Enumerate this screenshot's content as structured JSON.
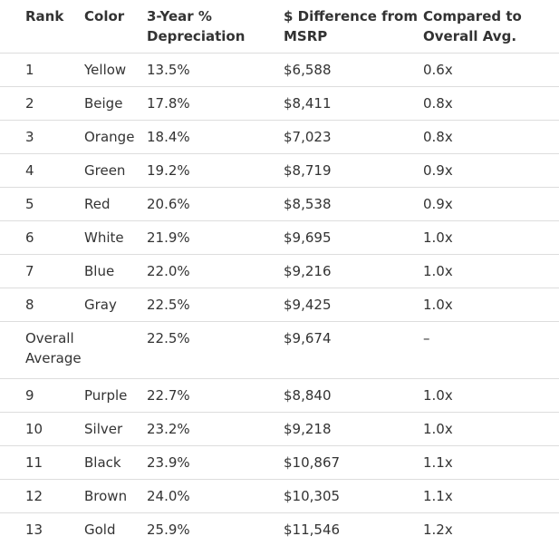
{
  "table": {
    "headers": [
      "Rank",
      "Color",
      "3-Year % Depreciation",
      "$ Difference from MSRP",
      "Compared to Overall Avg."
    ],
    "rows": [
      {
        "rank": "1",
        "color": "Yellow",
        "depreciation": "13.5%",
        "difference": "$6,588",
        "compared": "0.6x"
      },
      {
        "rank": "2",
        "color": "Beige",
        "depreciation": "17.8%",
        "difference": "$8,411",
        "compared": "0.8x"
      },
      {
        "rank": "3",
        "color": "Orange",
        "depreciation": "18.4%",
        "difference": "$7,023",
        "compared": "0.8x"
      },
      {
        "rank": "4",
        "color": "Green",
        "depreciation": "19.2%",
        "difference": "$8,719",
        "compared": "0.9x"
      },
      {
        "rank": "5",
        "color": "Red",
        "depreciation": "20.6%",
        "difference": "$8,538",
        "compared": "0.9x"
      },
      {
        "rank": "6",
        "color": "White",
        "depreciation": "21.9%",
        "difference": "$9,695",
        "compared": "1.0x"
      },
      {
        "rank": "7",
        "color": "Blue",
        "depreciation": "22.0%",
        "difference": "$9,216",
        "compared": "1.0x"
      },
      {
        "rank": "8",
        "color": "Gray",
        "depreciation": "22.5%",
        "difference": "$9,425",
        "compared": "1.0x"
      },
      {
        "rank": "Overall Average",
        "depreciation": "22.5%",
        "difference": "$9,674",
        "compared": "–"
      },
      {
        "rank": "9",
        "color": "Purple",
        "depreciation": "22.7%",
        "difference": "$8,840",
        "compared": "1.0x"
      },
      {
        "rank": "10",
        "color": "Silver",
        "depreciation": "23.2%",
        "difference": "$9,218",
        "compared": "1.0x"
      },
      {
        "rank": "11",
        "color": "Black",
        "depreciation": "23.9%",
        "difference": "$10,867",
        "compared": "1.1x"
      },
      {
        "rank": "12",
        "color": "Brown",
        "depreciation": "24.0%",
        "difference": "$10,305",
        "compared": "1.1x"
      },
      {
        "rank": "13",
        "color": "Gold",
        "depreciation": "25.9%",
        "difference": "$11,546",
        "compared": "1.2x"
      }
    ]
  }
}
